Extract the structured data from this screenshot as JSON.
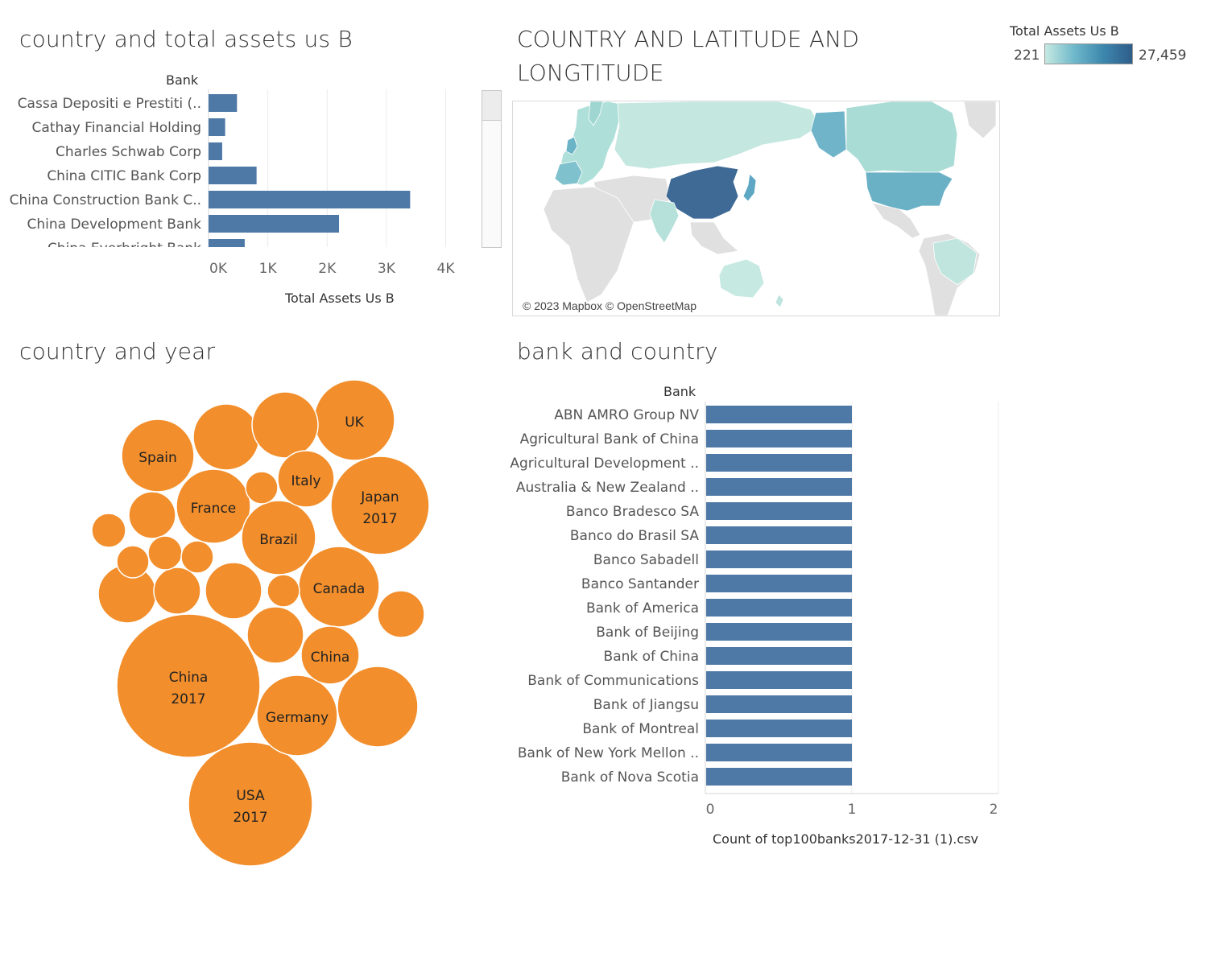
{
  "dashboard": {
    "colors": {
      "bar": "#4e79a7",
      "bubble": "#f28e2b",
      "map_low": "#c6e9e1",
      "map_high": "#2f5d8a",
      "land": "#e0e0e0"
    }
  },
  "panel_assets": {
    "title": "country and total assets us B",
    "row_header": "Bank",
    "x_title": "Total Assets Us B",
    "chart_data": {
      "type": "bar",
      "orientation": "horizontal",
      "categories": [
        "Cassa Depositi e Prestiti (..",
        "Cathay Financial Holding",
        "Charles Schwab Corp",
        "China CITIC Bank Corp",
        "China Construction Bank C..",
        "China Development Bank",
        "China Everbright Bank"
      ],
      "values": [
        480,
        280,
        230,
        810,
        3400,
        2200,
        610
      ],
      "xlabel": "Total Assets Us B",
      "ylabel": "Bank",
      "xlim": [
        0,
        4400
      ],
      "ticks": [
        0,
        1000,
        2000,
        3000,
        4000
      ],
      "tick_labels": [
        "0K",
        "1K",
        "2K",
        "3K",
        "4K"
      ]
    }
  },
  "panel_map": {
    "title_line1": "COUNTRY AND LATITUDE AND",
    "title_line2": "LONGTITUDE",
    "attribution": "© 2023 Mapbox © OpenStreetMap",
    "legend": {
      "title": "Total Assets Us B",
      "min": "221",
      "max": "27,459"
    }
  },
  "panel_bubbles": {
    "title": "country  and year",
    "chart_data": {
      "type": "bubble",
      "bubbles": [
        {
          "label1": "China",
          "label2": "2017",
          "r": 89
        },
        {
          "label1": "USA",
          "label2": "2017",
          "r": 77
        },
        {
          "label1": "Japan",
          "label2": "2017",
          "r": 61
        },
        {
          "label1": "UK",
          "label2": "",
          "r": 50
        },
        {
          "label1": "Canada",
          "label2": "",
          "r": 50
        },
        {
          "label1": "Germany",
          "label2": "",
          "r": 50
        },
        {
          "label1": "",
          "label2": "",
          "r": 50
        },
        {
          "label1": "France",
          "label2": "",
          "r": 46
        },
        {
          "label1": "Spain",
          "label2": "",
          "r": 45
        },
        {
          "label1": "Brazil",
          "label2": "",
          "r": 46
        },
        {
          "label1": "",
          "label2": "",
          "r": 41
        },
        {
          "label1": "",
          "label2": "",
          "r": 41
        },
        {
          "label1": "China",
          "label2": "",
          "r": 36
        },
        {
          "label1": "Italy",
          "label2": "",
          "r": 35
        },
        {
          "label1": "",
          "label2": "",
          "r": 35
        },
        {
          "label1": "",
          "label2": "",
          "r": 36
        },
        {
          "label1": "",
          "label2": "",
          "r": 35
        },
        {
          "label1": "",
          "label2": "",
          "r": 29
        },
        {
          "label1": "",
          "label2": "",
          "r": 29
        },
        {
          "label1": "",
          "label2": "",
          "r": 29
        },
        {
          "label1": "",
          "label2": "",
          "r": 21
        },
        {
          "label1": "",
          "label2": "",
          "r": 20
        },
        {
          "label1": "",
          "label2": "",
          "r": 21
        },
        {
          "label1": "",
          "label2": "",
          "r": 20
        },
        {
          "label1": "",
          "label2": "",
          "r": 20
        },
        {
          "label1": "",
          "label2": "",
          "r": 20
        }
      ]
    }
  },
  "panel_bankcountry": {
    "title": "bank and country",
    "row_header": "Bank",
    "x_title": "Count of top100banks2017-12-31 (1).csv",
    "chart_data": {
      "type": "bar",
      "orientation": "horizontal",
      "categories": [
        "ABN AMRO Group NV",
        "Agricultural Bank of China",
        "Agricultural Development ..",
        "Australia & New Zealand ..",
        "Banco Bradesco SA",
        "Banco do Brasil SA",
        "Banco Sabadell",
        "Banco Santander",
        "Bank of America",
        "Bank of Beijing",
        "Bank of China",
        "Bank of Communications",
        "Bank of Jiangsu",
        "Bank of Montreal",
        "Bank of New York Mellon ..",
        "Bank of Nova Scotia"
      ],
      "values": [
        1,
        1,
        1,
        1,
        1,
        1,
        1,
        1,
        1,
        1,
        1,
        1,
        1,
        1,
        1,
        1
      ],
      "xlabel": "Count of top100banks2017-12-31 (1).csv",
      "ylabel": "Bank",
      "xlim": [
        0,
        2
      ],
      "ticks": [
        0,
        1,
        2
      ],
      "tick_labels": [
        "0",
        "1",
        "2"
      ]
    }
  }
}
